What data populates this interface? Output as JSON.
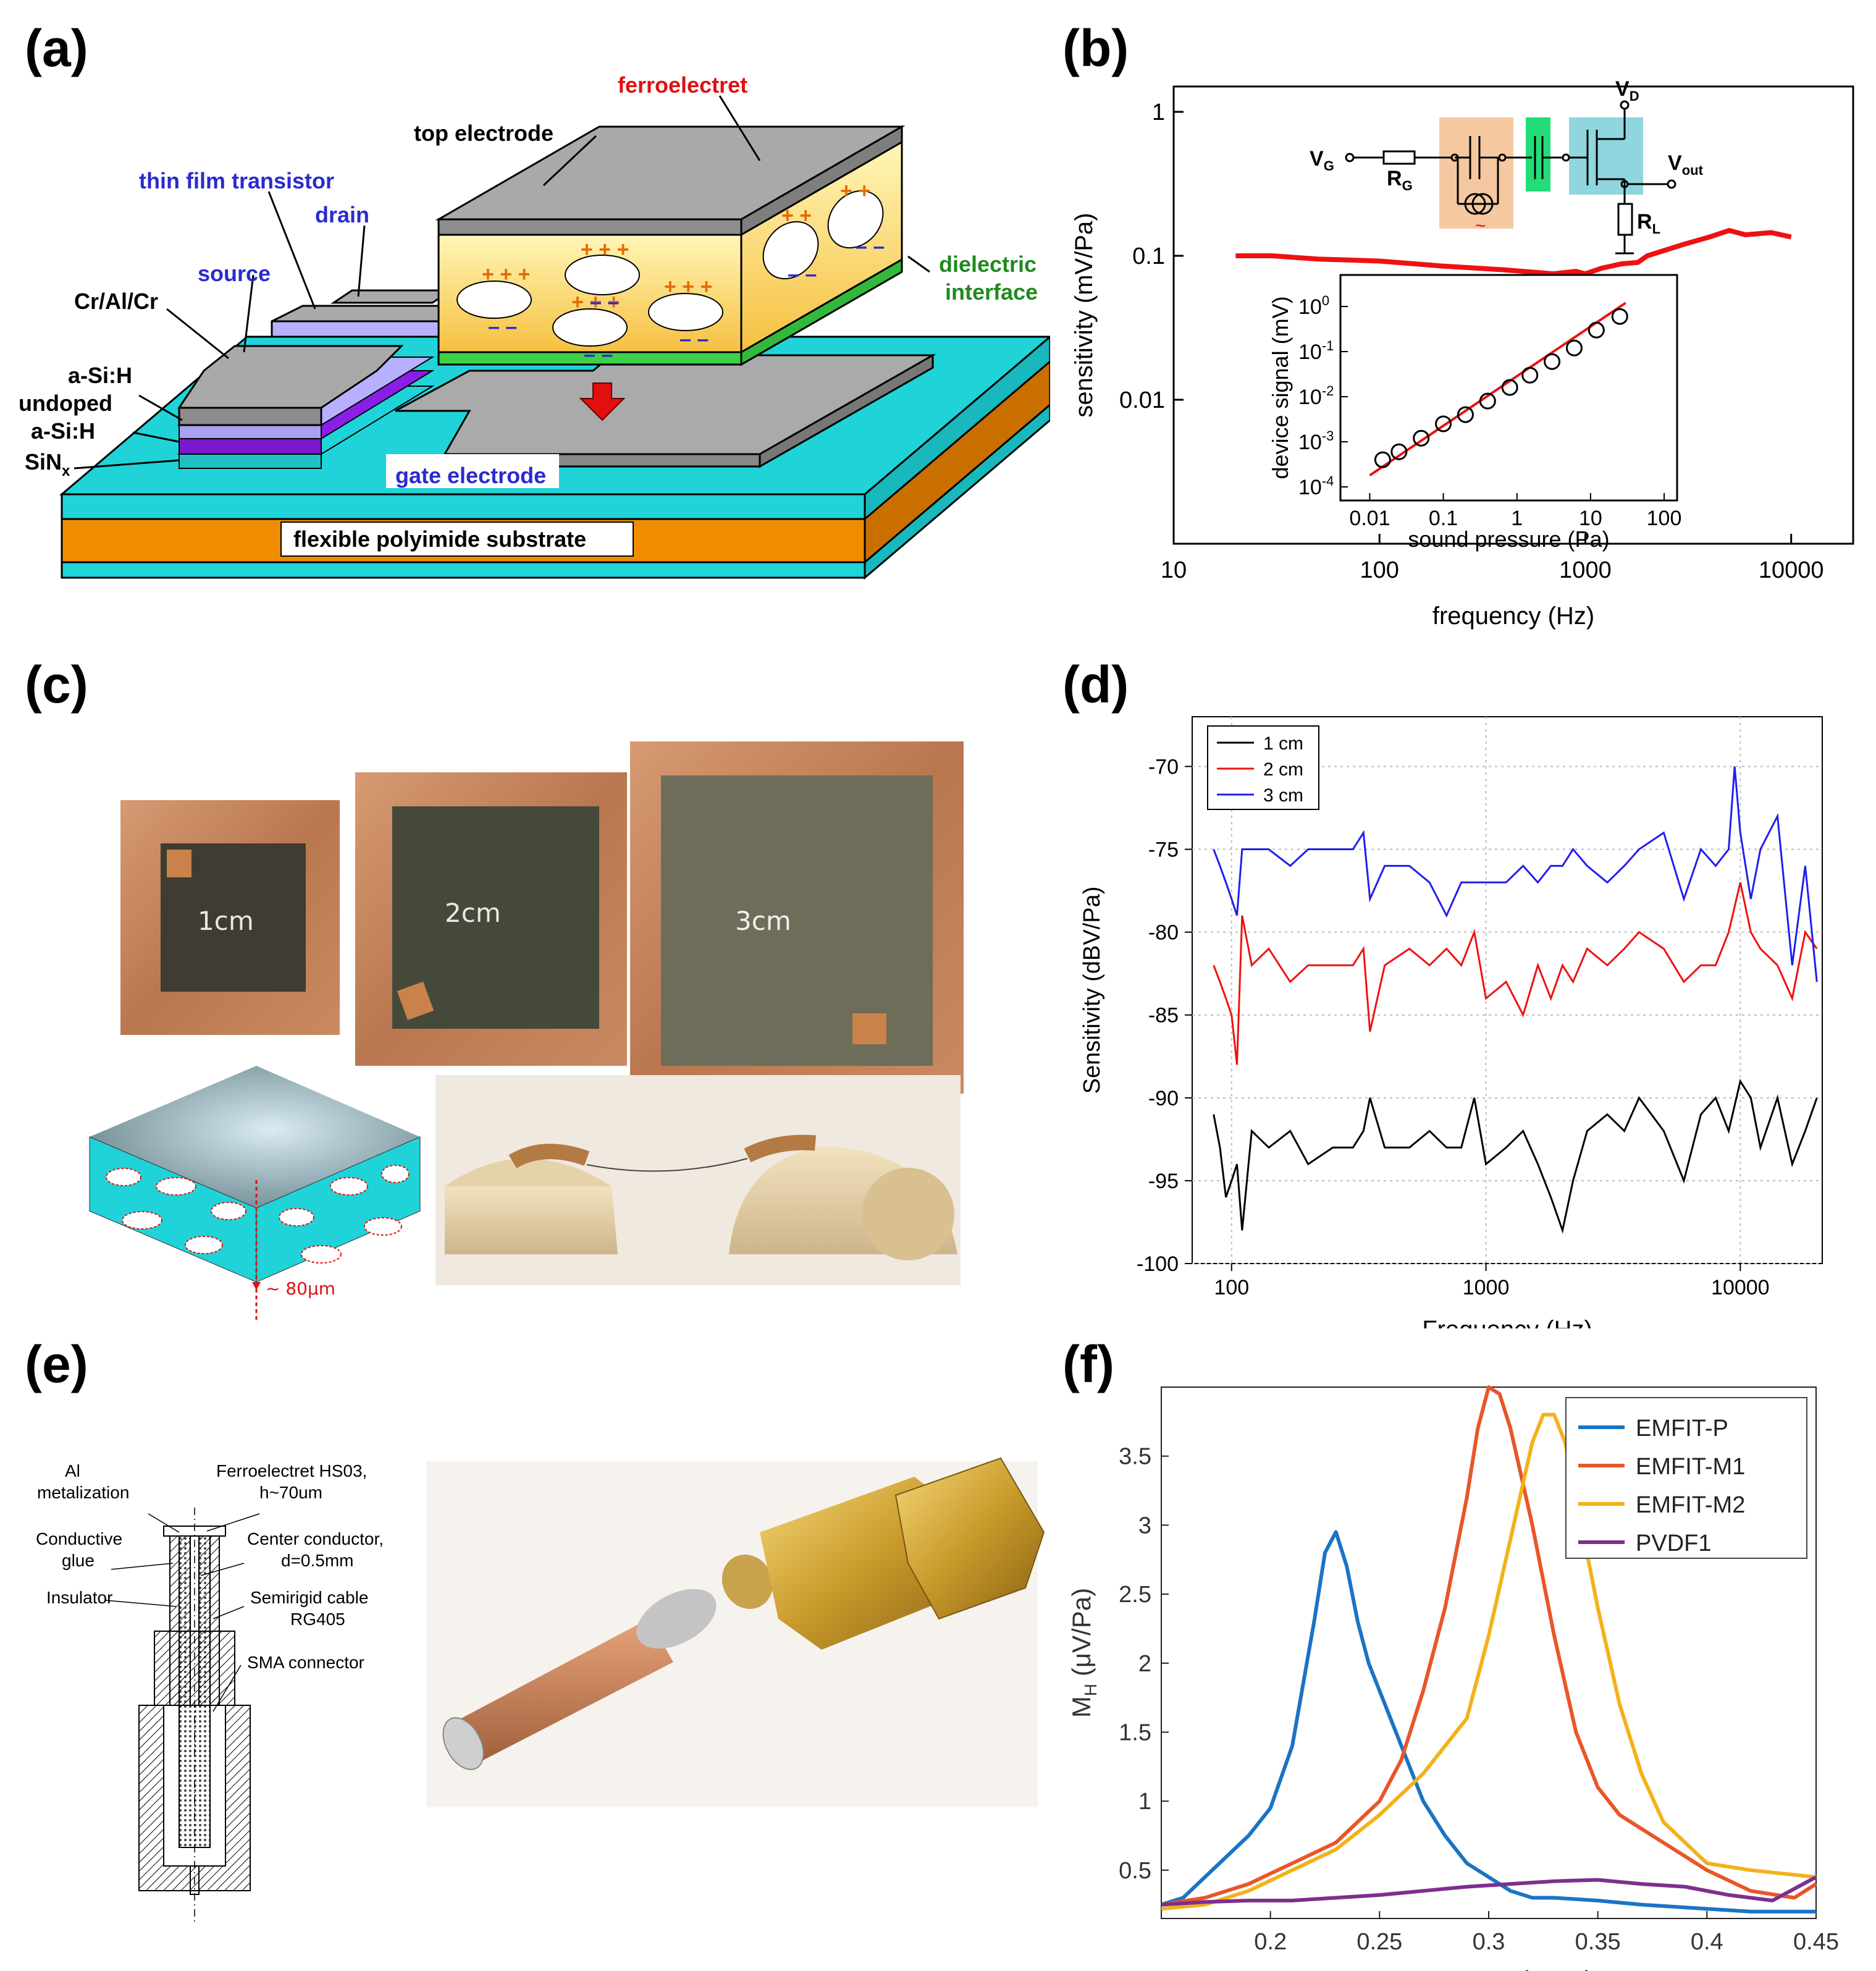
{
  "panels": {
    "a": {
      "label": "(a)",
      "labels": {
        "ferroelectret": "ferroelectret",
        "top_electrode": "top electrode",
        "thin_film_transistor": "thin film transistor",
        "drain": "drain",
        "source": "source",
        "crAlCr": "Cr/Al/Cr",
        "asih": "a-Si:H",
        "undoped": "undoped",
        "asih2": "a-Si:H",
        "sinx": "SiN",
        "sinx_sub": "x",
        "dielectric": "dielectric",
        "interface": "interface",
        "gate_electrode": "gate electrode",
        "substrate": "flexible polyimide substrate"
      },
      "colors": {
        "ferroelectret": "#e01010",
        "tft": "#2a2ad0",
        "dielectric": "#1e8a1e",
        "substrate": "#f08c00",
        "cyan": "#1fd3d8",
        "gray": "#a9a9a9"
      }
    },
    "b": {
      "label": "(b)",
      "circuit": {
        "vg": "V",
        "vg_sub": "G",
        "rg": "R",
        "rg_sub": "G",
        "vd": "V",
        "vd_sub": "D",
        "vout": "V",
        "vout_sub": "out",
        "rl": "R",
        "rl_sub": "L"
      }
    },
    "c": {
      "label": "(c)",
      "photos": {
        "s1": "1cm",
        "s2": "2cm",
        "s3": "3cm",
        "thickness": "~ 80μm"
      }
    },
    "d": {
      "label": "(d)"
    },
    "e": {
      "label": "(e)",
      "labels": {
        "al": "Al",
        "metalization": "metalization",
        "ferro": "Ferroelectret HS03,",
        "h": "h~70um",
        "conductive": "Conductive",
        "glue": "glue",
        "center": "Center conductor,",
        "d": "d=0.5mm",
        "insulator": "Insulator",
        "semirigid": "Semirigid cable",
        "rg405": "RG405",
        "sma": "SMA connector"
      }
    },
    "f": {
      "label": "(f)"
    }
  },
  "chart_data": [
    {
      "id": "b-main",
      "type": "line",
      "xscale": "log",
      "yscale": "log",
      "xlabel": "frequency (Hz)",
      "ylabel": "sensitivity (mV/Pa)",
      "xlim": [
        10,
        20000
      ],
      "ylim": [
        0.001,
        1.5
      ],
      "xticks": [
        10,
        100,
        1000,
        10000
      ],
      "xtick_labels": [
        "10",
        "100",
        "1000",
        "10000"
      ],
      "yticks": [
        0.01,
        0.1,
        1
      ],
      "ytick_labels": [
        "0.01",
        "0.1",
        "1"
      ],
      "color": "#ee1111",
      "x": [
        20,
        30,
        50,
        100,
        200,
        400,
        700,
        900,
        1000,
        1200,
        1500,
        1800,
        2000,
        3000,
        4000,
        5000,
        6000,
        8000,
        10000
      ],
      "y": [
        0.1,
        0.1,
        0.095,
        0.092,
        0.085,
        0.08,
        0.075,
        0.078,
        0.075,
        0.082,
        0.088,
        0.09,
        0.1,
        0.12,
        0.135,
        0.15,
        0.14,
        0.145,
        0.135
      ]
    },
    {
      "id": "b-inset",
      "type": "scatter",
      "xscale": "log",
      "yscale": "log",
      "xlabel": "sound pressure (Pa)",
      "ylabel": "device signal (mV)",
      "xlim": [
        0.004,
        150
      ],
      "ylim": [
        5e-05,
        5
      ],
      "xticks": [
        0.01,
        0.1,
        1,
        10,
        100
      ],
      "xtick_labels": [
        "0.01",
        "0.1",
        "1",
        "10",
        "100"
      ],
      "yticks": [
        0.0001,
        0.001,
        0.01,
        0.1,
        1
      ],
      "ytick_base": "10",
      "ytick_exps": [
        "-4",
        "-3",
        "-2",
        "-1",
        "0"
      ],
      "x": [
        0.015,
        0.025,
        0.05,
        0.1,
        0.2,
        0.4,
        0.8,
        1.5,
        3,
        6,
        12,
        25
      ],
      "y": [
        0.0004,
        0.0006,
        0.0012,
        0.0025,
        0.004,
        0.008,
        0.016,
        0.03,
        0.06,
        0.12,
        0.3,
        0.6
      ],
      "fit": {
        "x": [
          0.01,
          30
        ],
        "y": [
          0.00018,
          1.2
        ],
        "color": "#ee1111"
      }
    },
    {
      "id": "d",
      "type": "line",
      "xscale": "log",
      "xlabel": "Frequency (Hz)",
      "ylabel": "Sensitivity (dBV/Pa)",
      "xlim": [
        70,
        21000
      ],
      "ylim": [
        -100,
        -67
      ],
      "xticks": [
        100,
        1000,
        10000
      ],
      "xtick_labels": [
        "100",
        "1000",
        "10000"
      ],
      "yticks": [
        -100,
        -95,
        -90,
        -85,
        -80,
        -75,
        -70
      ],
      "ytick_labels": [
        "-100",
        "-95",
        "-90",
        "-85",
        "-80",
        "-75",
        "-70"
      ],
      "legend_position": "top-left",
      "series": [
        {
          "name": "1 cm",
          "color": "#000000",
          "x": [
            85,
            90,
            95,
            100,
            105,
            110,
            120,
            140,
            170,
            200,
            250,
            300,
            330,
            350,
            400,
            500,
            600,
            700,
            800,
            900,
            1000,
            1200,
            1400,
            1600,
            1800,
            2000,
            2200,
            2500,
            3000,
            3500,
            4000,
            5000,
            6000,
            7000,
            8000,
            9000,
            10000,
            11000,
            12000,
            14000,
            16000,
            18000,
            20000
          ],
          "y": [
            -91,
            -93,
            -96,
            -95,
            -94,
            -98,
            -92,
            -93,
            -92,
            -94,
            -93,
            -93,
            -92,
            -90,
            -93,
            -93,
            -92,
            -93,
            -93,
            -90,
            -94,
            -93,
            -92,
            -94,
            -96,
            -98,
            -95,
            -92,
            -91,
            -92,
            -90,
            -92,
            -95,
            -91,
            -90,
            -92,
            -89,
            -90,
            -93,
            -90,
            -94,
            -92,
            -90
          ]
        },
        {
          "name": "2 cm",
          "color": "#ee1111",
          "x": [
            85,
            90,
            95,
            100,
            105,
            110,
            120,
            140,
            170,
            200,
            250,
            300,
            330,
            350,
            400,
            500,
            600,
            700,
            800,
            900,
            1000,
            1200,
            1400,
            1600,
            1800,
            2000,
            2200,
            2500,
            3000,
            3500,
            4000,
            5000,
            6000,
            7000,
            8000,
            9000,
            10000,
            11000,
            12000,
            14000,
            16000,
            18000,
            20000
          ],
          "y": [
            -82,
            -83,
            -84,
            -85,
            -88,
            -79,
            -82,
            -81,
            -83,
            -82,
            -82,
            -82,
            -81,
            -86,
            -82,
            -81,
            -82,
            -81,
            -82,
            -80,
            -84,
            -83,
            -85,
            -82,
            -84,
            -82,
            -83,
            -81,
            -82,
            -81,
            -80,
            -81,
            -83,
            -82,
            -82,
            -80,
            -77,
            -80,
            -81,
            -82,
            -84,
            -80,
            -81
          ]
        },
        {
          "name": "3 cm",
          "color": "#1f1fee",
          "x": [
            85,
            90,
            95,
            100,
            105,
            110,
            120,
            140,
            170,
            200,
            250,
            300,
            330,
            350,
            400,
            500,
            600,
            700,
            800,
            900,
            1000,
            1200,
            1400,
            1600,
            1800,
            2000,
            2200,
            2500,
            3000,
            3500,
            4000,
            5000,
            6000,
            7000,
            8000,
            9000,
            9500,
            10000,
            11000,
            12000,
            14000,
            16000,
            18000,
            20000
          ],
          "y": [
            -75,
            -76,
            -77,
            -78,
            -79,
            -75,
            -75,
            -75,
            -76,
            -75,
            -75,
            -75,
            -74,
            -78,
            -76,
            -76,
            -77,
            -79,
            -77,
            -77,
            -77,
            -77,
            -76,
            -77,
            -76,
            -76,
            -75,
            -76,
            -77,
            -76,
            -75,
            -74,
            -78,
            -75,
            -76,
            -75,
            -70,
            -74,
            -78,
            -75,
            -73,
            -82,
            -76,
            -83
          ]
        }
      ]
    },
    {
      "id": "f",
      "type": "line",
      "xlabel": "Frequency (MHz)",
      "ylabel": "M",
      "ylabel_sub": "H",
      "ylabel_unit": " (μV/Pa)",
      "xlim": [
        0.15,
        0.45
      ],
      "ylim": [
        0.15,
        4
      ],
      "xticks": [
        0.2,
        0.25,
        0.3,
        0.35,
        0.4,
        0.45
      ],
      "xtick_labels": [
        "0.2",
        "0.25",
        "0.3",
        "0.35",
        "0.4",
        "0.45"
      ],
      "yticks": [
        0.5,
        1,
        1.5,
        2,
        2.5,
        3,
        3.5
      ],
      "ytick_labels": [
        "0.5",
        "1",
        "1.5",
        "2",
        "2.5",
        "3",
        "3.5"
      ],
      "legend_position": "top-right",
      "series": [
        {
          "name": "EMFIT-P",
          "color": "#1a74c4",
          "x": [
            0.15,
            0.16,
            0.17,
            0.18,
            0.19,
            0.2,
            0.21,
            0.22,
            0.225,
            0.23,
            0.235,
            0.24,
            0.245,
            0.25,
            0.26,
            0.27,
            0.28,
            0.29,
            0.3,
            0.31,
            0.32,
            0.33,
            0.35,
            0.37,
            0.4,
            0.42,
            0.45
          ],
          "y": [
            0.25,
            0.3,
            0.45,
            0.6,
            0.75,
            0.95,
            1.4,
            2.3,
            2.8,
            2.95,
            2.7,
            2.3,
            2.0,
            1.8,
            1.4,
            1.0,
            0.75,
            0.55,
            0.45,
            0.35,
            0.3,
            0.3,
            0.28,
            0.25,
            0.22,
            0.2,
            0.2
          ]
        },
        {
          "name": "EMFIT-M1",
          "color": "#e8562a",
          "x": [
            0.15,
            0.17,
            0.19,
            0.21,
            0.23,
            0.25,
            0.26,
            0.27,
            0.28,
            0.29,
            0.295,
            0.3,
            0.305,
            0.31,
            0.32,
            0.33,
            0.34,
            0.35,
            0.36,
            0.38,
            0.4,
            0.42,
            0.44,
            0.45
          ],
          "y": [
            0.25,
            0.3,
            0.4,
            0.55,
            0.7,
            1.0,
            1.3,
            1.8,
            2.4,
            3.2,
            3.7,
            4.0,
            3.95,
            3.7,
            3.0,
            2.2,
            1.5,
            1.1,
            0.9,
            0.7,
            0.5,
            0.35,
            0.3,
            0.4
          ]
        },
        {
          "name": "EMFIT-M2",
          "color": "#f2b21a",
          "x": [
            0.15,
            0.17,
            0.19,
            0.21,
            0.23,
            0.25,
            0.27,
            0.29,
            0.3,
            0.31,
            0.32,
            0.325,
            0.33,
            0.335,
            0.34,
            0.35,
            0.36,
            0.37,
            0.38,
            0.4,
            0.42,
            0.45
          ],
          "y": [
            0.22,
            0.25,
            0.35,
            0.5,
            0.65,
            0.9,
            1.2,
            1.6,
            2.2,
            2.9,
            3.6,
            3.8,
            3.8,
            3.6,
            3.2,
            2.4,
            1.7,
            1.2,
            0.85,
            0.55,
            0.5,
            0.45
          ]
        },
        {
          "name": "PVDF1",
          "color": "#7e2f8e",
          "x": [
            0.15,
            0.17,
            0.19,
            0.21,
            0.23,
            0.25,
            0.27,
            0.29,
            0.31,
            0.33,
            0.35,
            0.37,
            0.39,
            0.41,
            0.43,
            0.45
          ],
          "y": [
            0.25,
            0.27,
            0.28,
            0.28,
            0.3,
            0.32,
            0.35,
            0.38,
            0.4,
            0.42,
            0.43,
            0.4,
            0.38,
            0.32,
            0.28,
            0.45
          ]
        }
      ]
    }
  ]
}
